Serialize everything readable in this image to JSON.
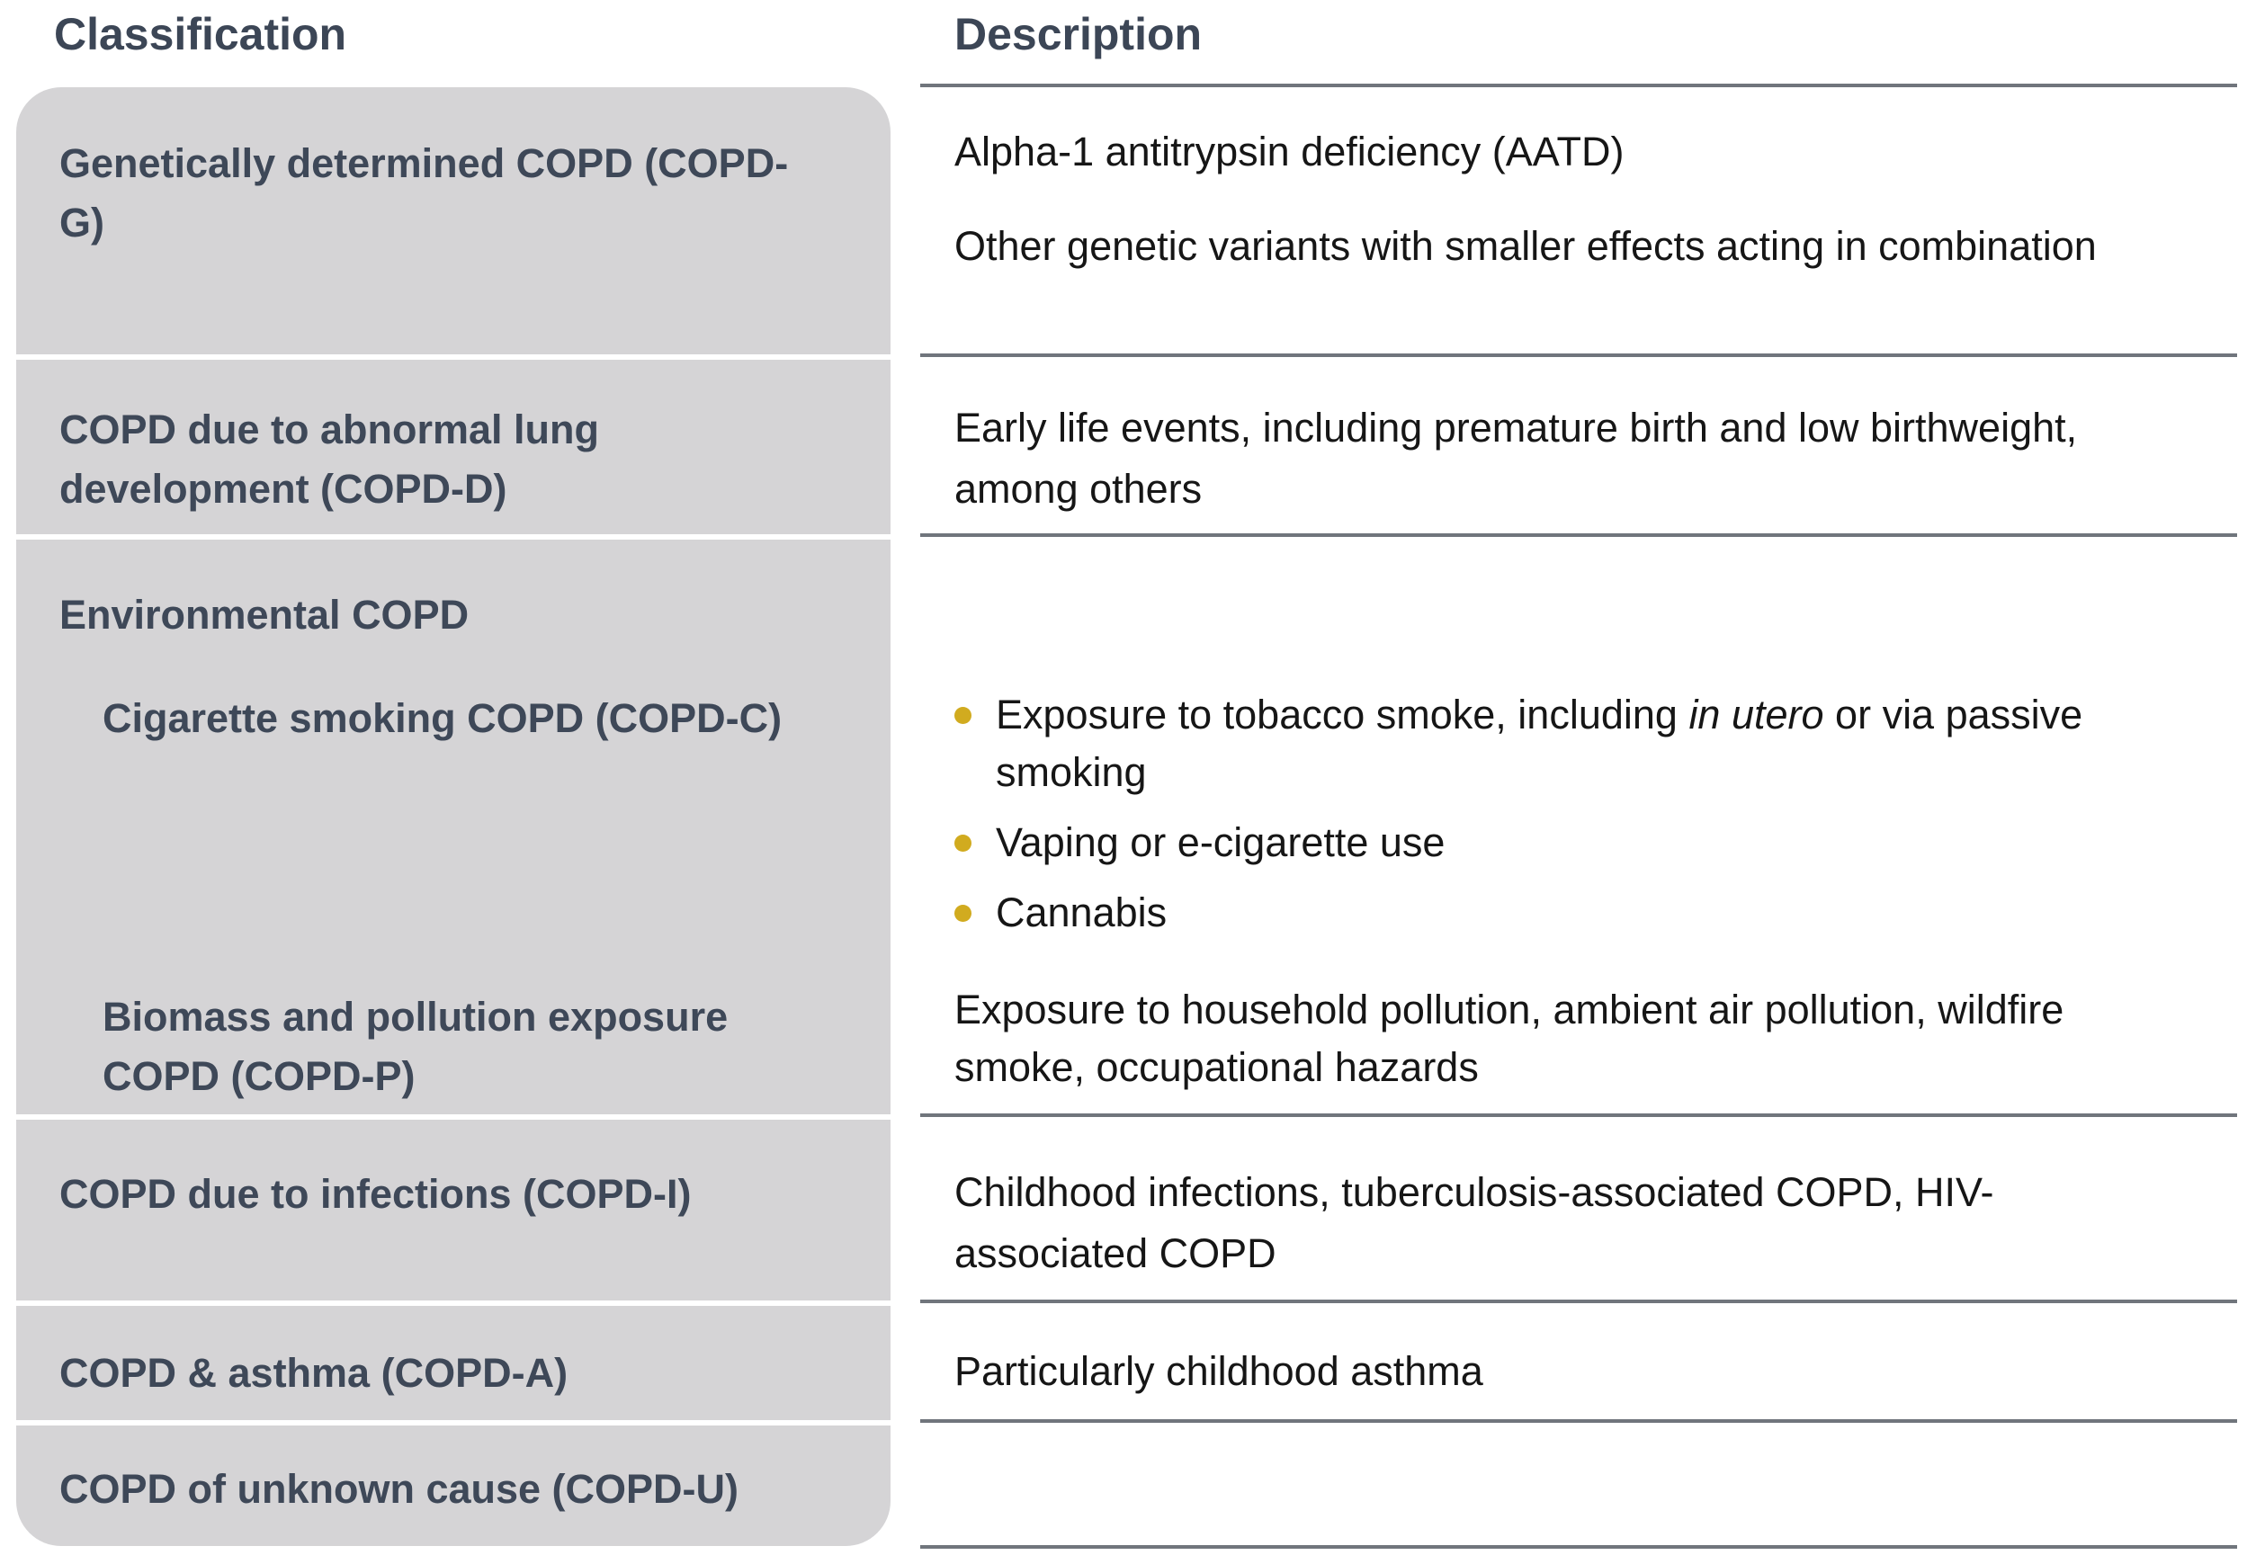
{
  "header": {
    "classification": "Classification",
    "description": "Description"
  },
  "rows": {
    "genetic": {
      "label": "Genetically determined COPD (COPD-G)",
      "desc1": "Alpha-1 antitrypsin deficiency (AATD)",
      "desc2": "Other genetic variants with smaller effects acting in combination"
    },
    "development": {
      "label": "COPD due to abnormal lung development (COPD-D)",
      "desc": "Early life events, including premature birth and low birthweight, among others"
    },
    "environmental": {
      "label": "Environmental COPD",
      "cigarette": {
        "label": "Cigarette smoking COPD (COPD-C)",
        "bullets": [
          {
            "pre": "Exposure to tobacco smoke, including ",
            "italic": "in utero",
            "post": " or via passive smoking"
          },
          {
            "text": "Vaping or e-cigarette use"
          },
          {
            "text": "Cannabis"
          }
        ]
      },
      "biomass": {
        "label": "Biomass and pollution exposure COPD (COPD-P)",
        "desc": "Exposure to household pollution, ambient air pollution, wildfire smoke, occupational hazards"
      }
    },
    "infections": {
      "label": "COPD due to infections (COPD-I)",
      "desc": "Childhood infections, tuberculosis-associated COPD, HIV-associated COPD"
    },
    "asthma": {
      "label": "COPD & asthma (COPD-A)",
      "desc": "Particularly childhood asthma"
    },
    "unknown": {
      "label": "COPD of unknown cause (COPD-U)",
      "desc": ""
    }
  },
  "colors": {
    "row_background": "#d5d4d6",
    "heading_text": "#3c4656",
    "row_label_text": "#3e4858",
    "body_text": "#161616",
    "divider": "#70757c",
    "bullet": "#d1ab1f"
  }
}
